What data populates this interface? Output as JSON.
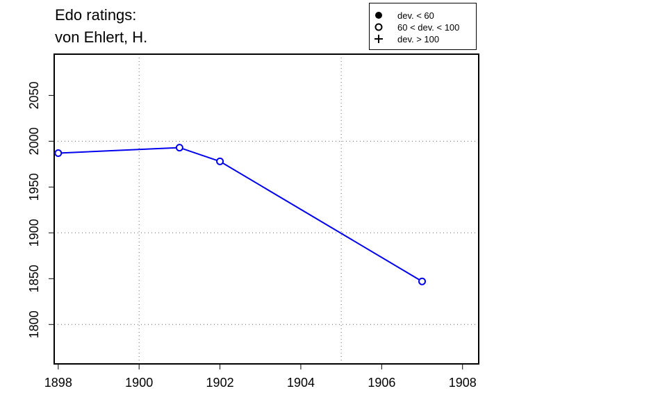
{
  "chart_data": {
    "type": "line",
    "title_lines": [
      "Edo ratings:",
      "von Ehlert, H."
    ],
    "xlabel": "",
    "ylabel": "",
    "xlim": [
      1897.9,
      1908.4
    ],
    "ylim": [
      1757,
      2095
    ],
    "x_ticks": [
      1898,
      1900,
      1902,
      1904,
      1906,
      1908
    ],
    "y_ticks": [
      1800,
      1850,
      1900,
      1950,
      2000,
      2050
    ],
    "grid_x": [
      1900,
      1905
    ],
    "grid_y": [
      1800,
      1900,
      2000
    ],
    "grid": true,
    "line_color": "#0000ee",
    "series": [
      {
        "x": [
          1898,
          1901,
          1902,
          1907
        ],
        "y": [
          1987,
          1993,
          1978,
          1847
        ],
        "marker": "open-circle"
      }
    ],
    "legend": {
      "placement": "top-right",
      "entries": [
        {
          "symbol": "filled-circle",
          "label": "dev. < 60"
        },
        {
          "symbol": "open-circle",
          "label": "60 < dev. < 100"
        },
        {
          "symbol": "plus",
          "label": "dev. > 100"
        }
      ]
    }
  }
}
